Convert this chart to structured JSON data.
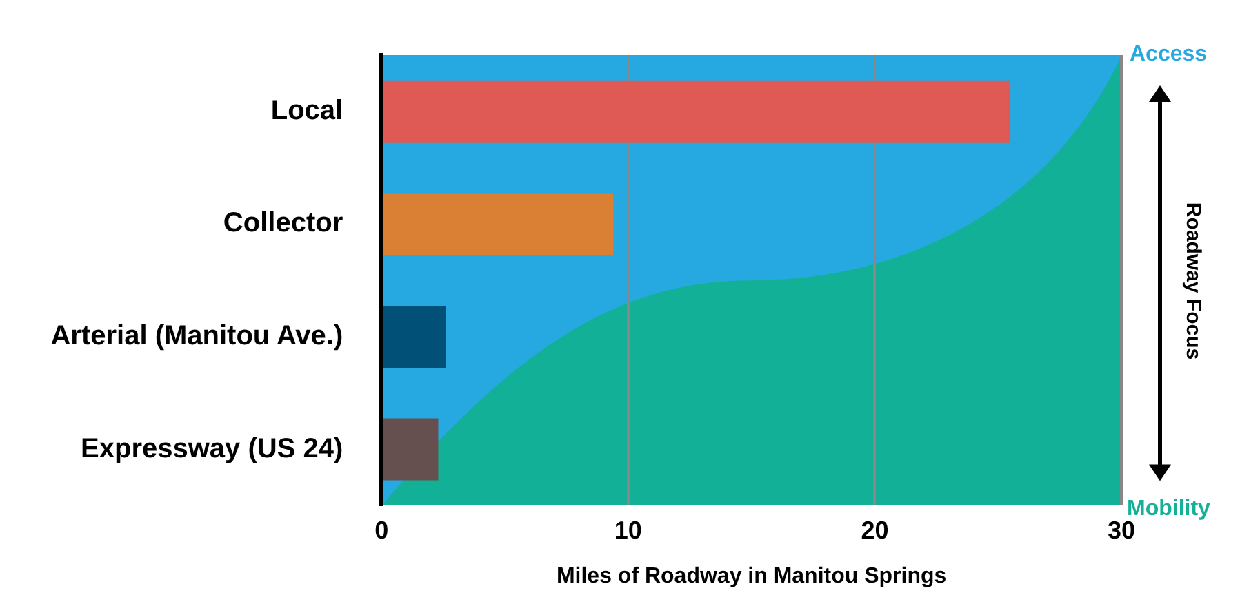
{
  "chart_data": {
    "type": "bar",
    "orientation": "horizontal",
    "xlabel": "Miles of Roadway in Manitou Springs",
    "categories": [
      "Local",
      "Collector",
      "Arterial (Manitou Ave.)",
      "Expressway (US 24)"
    ],
    "values": [
      25.5,
      9.4,
      2.6,
      2.3
    ],
    "colors": [
      "#e05a55",
      "#d98034",
      "#005078",
      "#66504f"
    ],
    "bands": [
      {
        "axis": "x",
        "from": 0,
        "to": 30,
        "color": "#25a9e0"
      }
    ],
    "xlim": [
      0,
      30
    ],
    "xticks": [
      0,
      10,
      20,
      30
    ],
    "grid": "x",
    "legend": false,
    "annotations": [
      "Access",
      "Roadway Focus",
      "Mobility"
    ]
  }
}
